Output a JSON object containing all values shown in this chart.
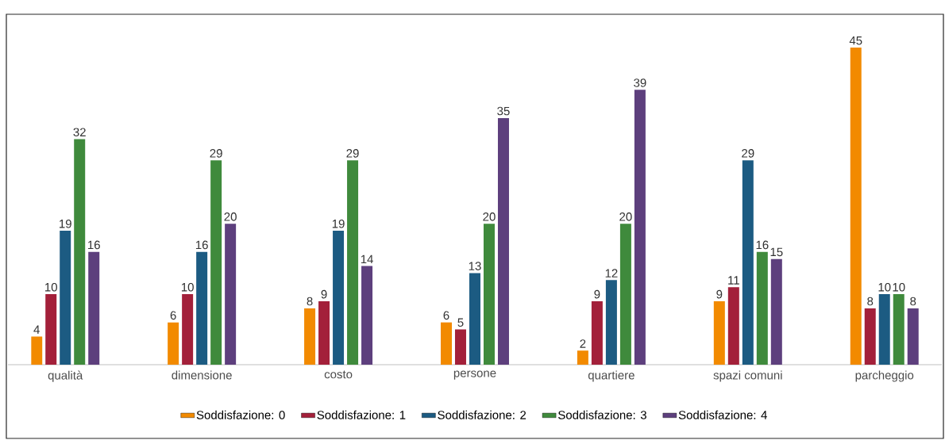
{
  "chart_data": {
    "type": "bar",
    "categories": [
      "qualità",
      "dimensione",
      "costo",
      "persone",
      "quartiere",
      "spazi comuni",
      "parcheggio"
    ],
    "series": [
      {
        "name": "Soddisfazione: 0",
        "color": "#f28a00",
        "values": [
          4,
          6,
          8,
          6,
          2,
          9,
          45
        ]
      },
      {
        "name": "Soddisfazione: 1",
        "color": "#a3203a",
        "values": [
          10,
          10,
          9,
          5,
          9,
          11,
          8
        ]
      },
      {
        "name": "Soddisfazione: 2",
        "color": "#1c5b82",
        "values": [
          19,
          16,
          19,
          13,
          12,
          29,
          10
        ]
      },
      {
        "name": "Soddisfazione: 3",
        "color": "#3f8a3c",
        "values": [
          32,
          29,
          29,
          20,
          20,
          16,
          10
        ]
      },
      {
        "name": "Soddisfazione: 4",
        "color": "#5d3f7d",
        "values": [
          16,
          20,
          14,
          35,
          39,
          15,
          8
        ]
      }
    ],
    "data_labels": true,
    "legend": "bottom"
  }
}
